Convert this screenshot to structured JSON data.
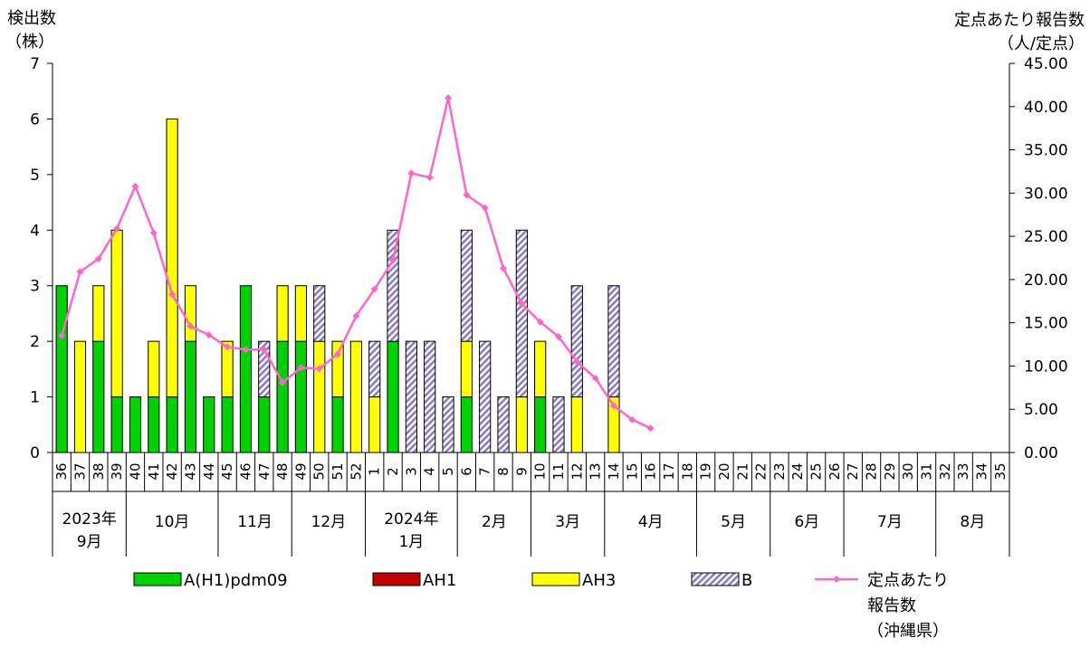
{
  "chart_data": {
    "type": "bar+line",
    "left_axis": {
      "title_line1": "検出数",
      "title_line2": "（株）",
      "range": [
        0,
        7
      ],
      "ticks": [
        0,
        1,
        2,
        3,
        4,
        5,
        6,
        7
      ]
    },
    "right_axis": {
      "title_line1": "定点あたり報告数",
      "title_line2": "（人/定点）",
      "range": [
        0,
        45
      ],
      "ticks": [
        "0.00",
        "5.00",
        "10.00",
        "15.00",
        "20.00",
        "25.00",
        "30.00",
        "35.00",
        "40.00",
        "45.00"
      ]
    },
    "weeks": [
      "36",
      "37",
      "38",
      "39",
      "40",
      "41",
      "42",
      "43",
      "44",
      "45",
      "46",
      "47",
      "48",
      "49",
      "50",
      "51",
      "52",
      "1",
      "2",
      "3",
      "4",
      "5",
      "6",
      "7",
      "8",
      "9",
      "10",
      "11",
      "12",
      "13",
      "14",
      "15",
      "16",
      "17",
      "18",
      "19",
      "20",
      "21",
      "22",
      "23",
      "24",
      "25",
      "26",
      "27",
      "28",
      "29",
      "30",
      "31",
      "32",
      "33",
      "34",
      "35"
    ],
    "month_groups": [
      {
        "line1": "2023年",
        "line2": "9月",
        "start": 0,
        "end": 3
      },
      {
        "line1": "10月",
        "line2": "",
        "start": 4,
        "end": 8
      },
      {
        "line1": "11月",
        "line2": "",
        "start": 9,
        "end": 12
      },
      {
        "line1": "12月",
        "line2": "",
        "start": 13,
        "end": 16
      },
      {
        "line1": "2024年",
        "line2": "1月",
        "start": 17,
        "end": 21
      },
      {
        "line1": "2月",
        "line2": "",
        "start": 22,
        "end": 25
      },
      {
        "line1": "3月",
        "line2": "",
        "start": 26,
        "end": 29
      },
      {
        "line1": "4月",
        "line2": "",
        "start": 30,
        "end": 34
      },
      {
        "line1": "5月",
        "line2": "",
        "start": 35,
        "end": 38
      },
      {
        "line1": "6月",
        "line2": "",
        "start": 39,
        "end": 42
      },
      {
        "line1": "7月",
        "line2": "",
        "start": 43,
        "end": 47
      },
      {
        "line1": "8月",
        "line2": "",
        "start": 48,
        "end": 51
      }
    ],
    "series": [
      {
        "name": "A(H1)pdm09",
        "type": "bar",
        "color": "#00d100",
        "values": [
          3,
          0,
          2,
          1,
          1,
          1,
          1,
          2,
          1,
          1,
          3,
          1,
          2,
          2,
          0,
          1,
          0,
          0,
          2,
          0,
          0,
          0,
          1,
          0,
          0,
          0,
          1,
          0,
          0,
          0,
          0,
          0,
          0,
          0,
          0,
          0,
          0,
          0,
          0,
          0,
          0,
          0,
          0,
          0,
          0,
          0,
          0,
          0,
          0,
          0,
          0,
          0
        ]
      },
      {
        "name": "AH1",
        "type": "bar",
        "color": "#c00000",
        "values": [
          0,
          0,
          0,
          0,
          0,
          0,
          0,
          0,
          0,
          0,
          0,
          0,
          0,
          0,
          0,
          0,
          0,
          0,
          0,
          0,
          0,
          0,
          0,
          0,
          0,
          0,
          0,
          0,
          0,
          0,
          0,
          0,
          0,
          0,
          0,
          0,
          0,
          0,
          0,
          0,
          0,
          0,
          0,
          0,
          0,
          0,
          0,
          0,
          0,
          0,
          0,
          0
        ]
      },
      {
        "name": "AH3",
        "type": "bar",
        "color": "#ffff00",
        "values": [
          0,
          2,
          1,
          3,
          0,
          1,
          5,
          1,
          0,
          1,
          0,
          0,
          1,
          1,
          2,
          1,
          2,
          1,
          0,
          0,
          0,
          0,
          1,
          0,
          0,
          1,
          1,
          0,
          1,
          0,
          1,
          0,
          0,
          0,
          0,
          0,
          0,
          0,
          0,
          0,
          0,
          0,
          0,
          0,
          0,
          0,
          0,
          0,
          0,
          0,
          0,
          0
        ]
      },
      {
        "name": "B",
        "type": "bar",
        "color": "#8e7cc3",
        "pattern": "hatched",
        "values": [
          0,
          0,
          0,
          0,
          0,
          0,
          0,
          0,
          0,
          0,
          0,
          1,
          0,
          0,
          1,
          0,
          0,
          1,
          2,
          2,
          2,
          1,
          2,
          2,
          1,
          3,
          0,
          1,
          2,
          0,
          2,
          0,
          0,
          0,
          0,
          0,
          0,
          0,
          0,
          0,
          0,
          0,
          0,
          0,
          0,
          0,
          0,
          0,
          0,
          0,
          0,
          0
        ]
      },
      {
        "name_line1": "定点あたり",
        "name_line2": "報告数",
        "name_line3": "（沖縄県）",
        "type": "line",
        "color": "#ff66cc",
        "axis": "right",
        "values": [
          13.5,
          20.9,
          22.4,
          25.9,
          30.8,
          25.4,
          18.3,
          14.6,
          13.6,
          12.2,
          11.9,
          11.9,
          8.1,
          9.8,
          9.7,
          11.4,
          15.8,
          18.9,
          22.2,
          32.3,
          31.8,
          41.0,
          29.8,
          28.3,
          21.3,
          17.2,
          15.1,
          13.4,
          10.5,
          8.6,
          5.4,
          3.8,
          2.8
        ]
      }
    ],
    "legend_position": "bottom"
  }
}
